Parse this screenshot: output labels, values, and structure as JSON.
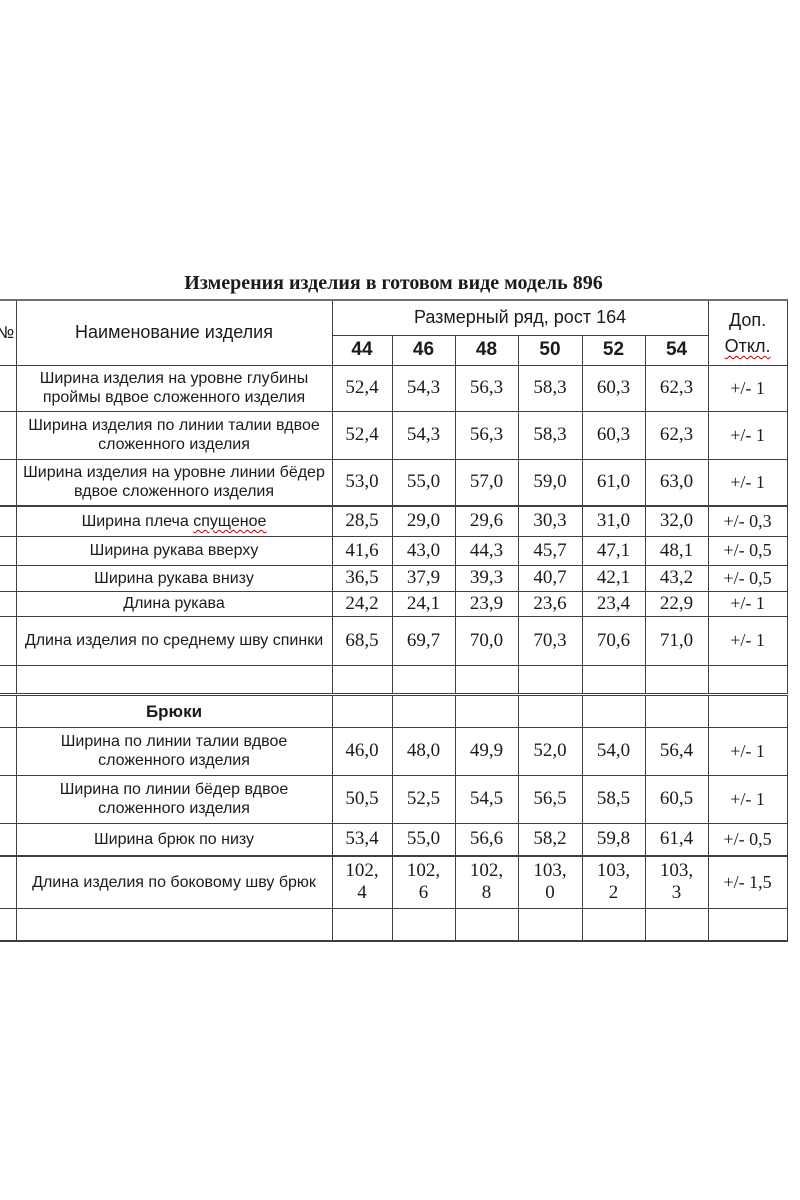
{
  "title": "Измерения изделия в готовом виде модель 896",
  "colors": {
    "border": "#404040",
    "text": "#1b1b1b",
    "spellcheck_underline": "#c00000"
  },
  "table": {
    "number_col_header": "№",
    "name_col_header": "Наименование изделия",
    "size_group_header": "Размерный ряд, рост 164",
    "sizes": [
      "44",
      "46",
      "48",
      "50",
      "52",
      "54"
    ],
    "tolerance_header_line1": "Доп.",
    "tolerance_header_line2": "Откл.",
    "rows": [
      {
        "type": "data",
        "name": "Ширина изделия на уровне глубины проймы вдвое сложенного изделия",
        "values": [
          "52,4",
          "54,3",
          "56,3",
          "58,3",
          "60,3",
          "62,3"
        ],
        "tolerance": "+/- 1"
      },
      {
        "type": "data",
        "name": "Ширина изделия по линии талии вдвое сложенного изделия",
        "values": [
          "52,4",
          "54,3",
          "56,3",
          "58,3",
          "60,3",
          "62,3"
        ],
        "tolerance": "+/- 1"
      },
      {
        "type": "data",
        "name": "Ширина изделия на уровне линии бёдер вдвое сложенного изделия",
        "values": [
          "53,0",
          "55,0",
          "57,0",
          "59,0",
          "61,0",
          "63,0"
        ],
        "tolerance": "+/- 1"
      },
      {
        "type": "data",
        "name": "Ширина плеча",
        "marked": "спущеное",
        "values": [
          "28,5",
          "29,0",
          "29,6",
          "30,3",
          "31,0",
          "32,0"
        ],
        "tolerance": "+/- 0,3"
      },
      {
        "type": "data",
        "name": "Ширина рукава вверху",
        "values": [
          "41,6",
          "43,0",
          "44,3",
          "45,7",
          "47,1",
          "48,1"
        ],
        "tolerance": "+/- 0,5"
      },
      {
        "type": "data",
        "name": "Ширина рукава внизу",
        "values": [
          "36,5",
          "37,9",
          "39,3",
          "40,7",
          "42,1",
          "43,2"
        ],
        "tolerance": "+/- 0,5"
      },
      {
        "type": "data",
        "name": "Длина рукава",
        "values": [
          "24,2",
          "24,1",
          "23,9",
          "23,6",
          "23,4",
          "22,9"
        ],
        "tolerance": "+/- 1"
      },
      {
        "type": "data",
        "name": "Длина изделия по среднему шву спинки",
        "values": [
          "68,5",
          "69,7",
          "70,0",
          "70,3",
          "70,6",
          "71,0"
        ],
        "tolerance": "+/- 1"
      },
      {
        "type": "empty"
      },
      {
        "type": "section",
        "name": "Брюки"
      },
      {
        "type": "data",
        "name": "Ширина по линии талии вдвое сложенного изделия",
        "values": [
          "46,0",
          "48,0",
          "49,9",
          "52,0",
          "54,0",
          "56,4"
        ],
        "tolerance": "+/- 1"
      },
      {
        "type": "data",
        "name": "Ширина по линии бёдер вдвое сложенного изделия",
        "values": [
          "50,5",
          "52,5",
          "54,5",
          "56,5",
          "58,5",
          "60,5"
        ],
        "tolerance": "+/- 1"
      },
      {
        "type": "data",
        "name": "Ширина брюк по низу",
        "values": [
          "53,4",
          "55,0",
          "56,6",
          "58,2",
          "59,8",
          "61,4"
        ],
        "tolerance": "+/- 0,5"
      },
      {
        "type": "data",
        "name": "Длина изделия по боковому шву брюк",
        "values": [
          "102,4",
          "102,6",
          "102,8",
          "103,0",
          "103,2",
          "103,3"
        ],
        "tolerance": "+/- 1,5"
      },
      {
        "type": "empty"
      }
    ]
  }
}
